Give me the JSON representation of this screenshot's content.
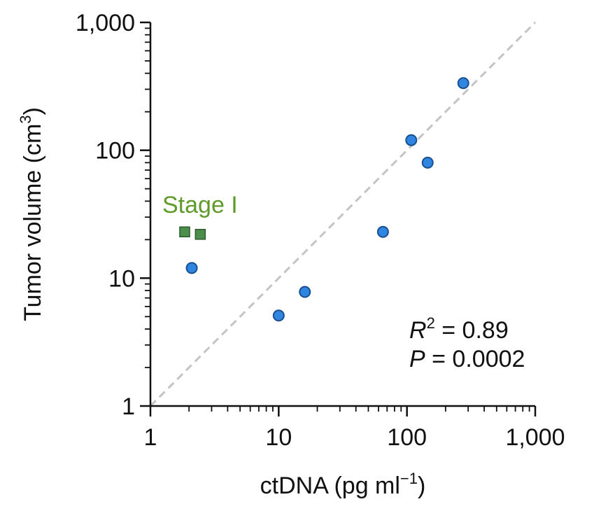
{
  "chart_data": {
    "type": "scatter",
    "x_scale": "log",
    "y_scale": "log",
    "xlim": [
      1,
      1000
    ],
    "ylim": [
      1,
      1000
    ],
    "xlabel_main": "ctDNA (pg ml",
    "xlabel_sup": "−1",
    "xlabel_end": ")",
    "ylabel_main": "Tumor volume (cm",
    "ylabel_sup": "3",
    "ylabel_end": ")",
    "x_ticks": [
      {
        "value": 1,
        "label": "1"
      },
      {
        "value": 10,
        "label": "10"
      },
      {
        "value": 100,
        "label": "100"
      },
      {
        "value": 1000,
        "label": "1,000"
      }
    ],
    "y_ticks": [
      {
        "value": 1,
        "label": "1"
      },
      {
        "value": 10,
        "label": "10"
      },
      {
        "value": 100,
        "label": "100"
      },
      {
        "value": 1000,
        "label": "1,000"
      }
    ],
    "series": [
      {
        "marker": "circle",
        "color": "#2f86e0",
        "edge_color": "#1a4f8f",
        "points": [
          {
            "x": 2.1,
            "y": 12
          },
          {
            "x": 10,
            "y": 5.1
          },
          {
            "x": 16,
            "y": 7.8
          },
          {
            "x": 65,
            "y": 23
          },
          {
            "x": 108,
            "y": 120
          },
          {
            "x": 145,
            "y": 80
          },
          {
            "x": 275,
            "y": 335
          }
        ]
      },
      {
        "name": "Stage I",
        "marker": "square",
        "color": "#4b8f4b",
        "edge_color": "#2d5a2d",
        "label_color": "#5f9a2a",
        "points": [
          {
            "x": 1.85,
            "y": 23
          },
          {
            "x": 2.45,
            "y": 22
          }
        ]
      }
    ],
    "reference_line": {
      "style": "dashed",
      "color": "#c4c4c4",
      "from": [
        1,
        1
      ],
      "to": [
        1000,
        1000
      ]
    },
    "annotations": {
      "r_symbol": "R",
      "r_sup": "2",
      "r_value": " = 0.89",
      "p_symbol": "P",
      "p_value": " = 0.0002"
    }
  }
}
